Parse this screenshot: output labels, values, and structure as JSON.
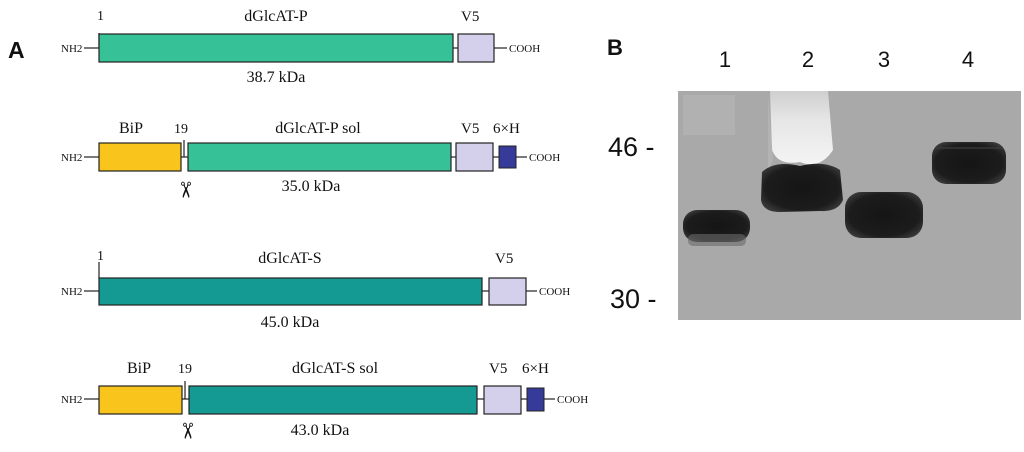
{
  "panel_a": {
    "label": "A",
    "n_terminus": "NH2",
    "c_terminus": "COOH",
    "constructs": [
      {
        "name": "dGlcAT-P",
        "start_label": "1",
        "mass": "38.7 kDa",
        "has_bip": false,
        "has_his": false,
        "main_color": "#36c197",
        "tags": [
          "V5"
        ]
      },
      {
        "name": "dGlcAT-P sol",
        "start_label": "19",
        "mass": "35.0 kDa",
        "has_bip": true,
        "has_his": true,
        "main_color": "#36c197",
        "bip_label": "BiP",
        "tags": [
          "V5",
          "6×H"
        ]
      },
      {
        "name": "dGlcAT-S",
        "start_label": "1",
        "mass": "45.0 kDa",
        "has_bip": false,
        "has_his": false,
        "main_color": "#159993",
        "tags": [
          "V5"
        ]
      },
      {
        "name": "dGlcAT-S sol",
        "start_label": "19",
        "mass": "43.0 kDa",
        "has_bip": true,
        "has_his": true,
        "main_color": "#159993",
        "bip_label": "BiP",
        "tags": [
          "V5",
          "6×H"
        ]
      }
    ],
    "colors": {
      "bip": "#f9c41c",
      "v5": "#d4d0ec",
      "his": "#363a98"
    }
  },
  "panel_b": {
    "label": "B",
    "lanes": [
      "1",
      "2",
      "3",
      "4"
    ],
    "markers": [
      "46 -",
      "30 -"
    ]
  }
}
